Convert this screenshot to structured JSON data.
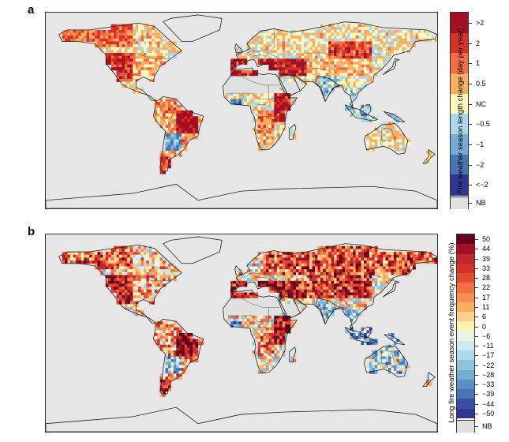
{
  "figure": {
    "panels": [
      {
        "label": "a",
        "legend_title": "Fire weather season length change (day per year)",
        "legend_classes": [
          {
            "label": ">2",
            "color": "#a50f24"
          },
          {
            "label": "2",
            "color": "#d73027"
          },
          {
            "label": "1",
            "color": "#f46d43"
          },
          {
            "label": "0.5",
            "color": "#fdae61"
          },
          {
            "label": "NC",
            "color": "#fff7bc"
          },
          {
            "label": "−0.5",
            "color": "#abd9e9"
          },
          {
            "label": "−1",
            "color": "#74add1"
          },
          {
            "label": "−2",
            "color": "#4575b4"
          },
          {
            "label": "<−2",
            "color": "#313695"
          },
          {
            "label": "NB",
            "color": "#e0e0e0"
          }
        ],
        "label_values_top_to_bottom": [
          ">2",
          "2",
          "1",
          "0.5",
          "NC",
          "−0.5",
          "−1",
          "−2",
          "<−2",
          "NB"
        ]
      },
      {
        "label": "b",
        "legend_title": "Long fire weather season event frequency change (%)",
        "tick_labels": [
          "50",
          "44",
          "39",
          "33",
          "28",
          "22",
          "17",
          "11",
          "6",
          "0",
          "−6",
          "−11",
          "−17",
          "−22",
          "−28",
          "−33",
          "−39",
          "−44",
          "−50",
          "NB"
        ],
        "colors": [
          "#67001f",
          "#a50f24",
          "#c0272d",
          "#d73027",
          "#e34a33",
          "#f46d43",
          "#f88d52",
          "#fdae61",
          "#fed090",
          "#fff2b3",
          "#e8f4e6",
          "#cfe8f0",
          "#abd9e9",
          "#8fc3dd",
          "#74add1",
          "#5a8fc3",
          "#4575b4",
          "#3a4ea3",
          "#313695",
          "#e0e0e0"
        ]
      }
    ]
  }
}
